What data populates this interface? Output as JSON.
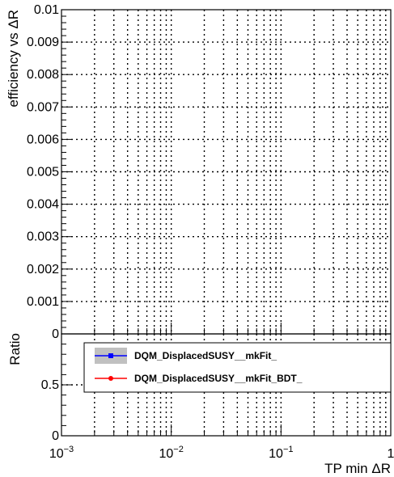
{
  "chart_data": [
    {
      "type": "line",
      "panel": "efficiency",
      "ylabel": "efficiency vs ΔR",
      "ylim": [
        0,
        0.01
      ],
      "yticks": [
        "0",
        "0.001",
        "0.002",
        "0.003",
        "0.004",
        "0.005",
        "0.006",
        "0.007",
        "0.008",
        "0.009",
        "0.01"
      ],
      "xscale": "log",
      "xlim": [
        0.001,
        1
      ],
      "grid": true,
      "series": [
        {
          "name": "DQM_DisplacedSUSY__mkFit_",
          "color": "#0000ff",
          "values": []
        },
        {
          "name": "DQM_DisplacedSUSY__mkFit_BDT_",
          "color": "#ff0000",
          "values": []
        }
      ]
    },
    {
      "type": "line",
      "panel": "ratio",
      "ylabel": "Ratio",
      "xlabel": "TP min ΔR",
      "ylim": [
        0,
        1
      ],
      "yticks": [
        "0",
        "0.5"
      ],
      "xscale": "log",
      "xlim": [
        0.001,
        1
      ],
      "xticks": [
        {
          "base": "10",
          "exp": "−3"
        },
        {
          "base": "10",
          "exp": "−2"
        },
        {
          "base": "10",
          "exp": "−1"
        },
        {
          "base": "1",
          "exp": ""
        }
      ],
      "grid": true,
      "legend": {
        "placement": "top",
        "entries": [
          {
            "label": "DQM_DisplacedSUSY__mkFit_",
            "color": "#0000ff",
            "marker": "square",
            "band": "#c0c0c0"
          },
          {
            "label": "DQM_DisplacedSUSY__mkFit_BDT_",
            "color": "#ff0000",
            "marker": "circle",
            "band": ""
          }
        ]
      }
    }
  ]
}
